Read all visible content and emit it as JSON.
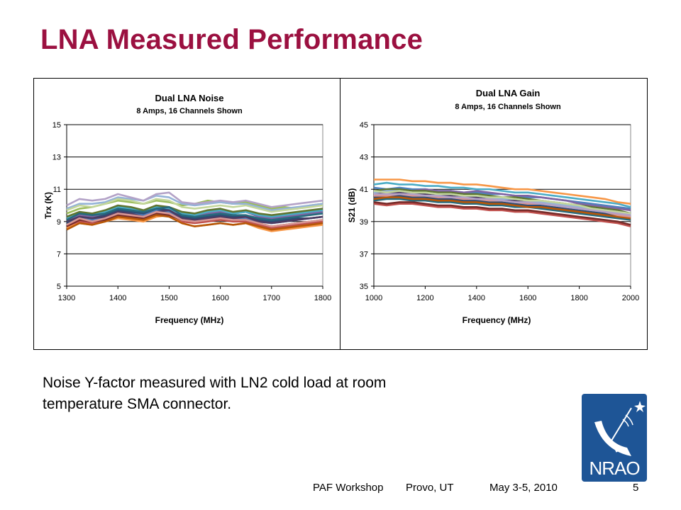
{
  "slide": {
    "title": "LNA Measured Performance",
    "caption_lines": [
      "Noise Y-factor measured with LN2 cold load at room",
      "temperature SMA connector."
    ],
    "footer": {
      "event": "PAF Workshop",
      "location": "Provo, UT",
      "date": "May 3-5, 2010",
      "page": "5"
    },
    "logo_text": "NRAO"
  },
  "colors": {
    "title": "#9b1040",
    "series": [
      "#4f81bd",
      "#c0504d",
      "#9bbb59",
      "#8064a2",
      "#4bacc6",
      "#f79646",
      "#2c4d75",
      "#772c2a",
      "#5f7530",
      "#4d3b62",
      "#276a7c",
      "#b65708",
      "#95b3d7",
      "#d99694",
      "#c3d69b",
      "#b3a2c7"
    ]
  },
  "chart_data": [
    {
      "type": "line",
      "title": "Dual LNA Noise",
      "subtitle": "8 Amps, 16 Channels Shown",
      "xlabel": "Frequency (MHz)",
      "ylabel": "Trx (K)",
      "xlim": [
        1300,
        1800
      ],
      "ylim": [
        5,
        15
      ],
      "xticks": [
        1300,
        1400,
        1500,
        1600,
        1700,
        1800
      ],
      "yticks": [
        5,
        7,
        9,
        11,
        13,
        15
      ],
      "grid": "horizontal",
      "legend": "none",
      "x": [
        1300,
        1325,
        1350,
        1375,
        1400,
        1425,
        1450,
        1475,
        1500,
        1525,
        1550,
        1575,
        1600,
        1625,
        1650,
        1675,
        1700,
        1725,
        1750,
        1775,
        1800
      ],
      "series": [
        {
          "values": [
            8.8,
            9.2,
            9.1,
            9.3,
            9.6,
            9.5,
            9.4,
            9.7,
            9.6,
            9.2,
            9.1,
            9.2,
            9.3,
            9.1,
            9.2,
            9.0,
            8.9,
            9.0,
            9.1,
            9.2,
            9.3
          ]
        },
        {
          "values": [
            8.6,
            9.0,
            8.9,
            9.0,
            9.3,
            9.2,
            9.1,
            9.4,
            9.5,
            9.0,
            8.9,
            9.0,
            9.1,
            9.0,
            9.0,
            8.8,
            8.6,
            8.7,
            8.8,
            8.9,
            9.0
          ]
        },
        {
          "values": [
            9.5,
            9.8,
            9.9,
            10.1,
            10.3,
            10.2,
            10.1,
            10.3,
            10.2,
            10.0,
            10.1,
            10.3,
            10.2,
            10.1,
            10.2,
            10.0,
            9.8,
            9.9,
            9.8,
            10.0,
            10.1
          ]
        },
        {
          "values": [
            9.0,
            9.4,
            9.3,
            9.5,
            9.8,
            9.7,
            9.5,
            9.8,
            9.9,
            9.4,
            9.3,
            9.5,
            9.6,
            9.5,
            9.6,
            9.3,
            9.2,
            9.3,
            9.4,
            9.5,
            9.6
          ]
        },
        {
          "values": [
            9.2,
            9.5,
            9.4,
            9.6,
            9.9,
            9.8,
            9.6,
            9.9,
            9.8,
            9.5,
            9.4,
            9.6,
            9.7,
            9.5,
            9.6,
            9.4,
            9.3,
            9.4,
            9.5,
            9.6,
            9.7
          ]
        },
        {
          "values": [
            8.6,
            8.9,
            8.8,
            9.0,
            9.2,
            9.1,
            9.0,
            9.3,
            9.4,
            8.9,
            8.7,
            8.8,
            8.9,
            8.8,
            8.9,
            8.6,
            8.4,
            8.5,
            8.6,
            8.7,
            8.8
          ]
        },
        {
          "values": [
            8.9,
            9.3,
            9.2,
            9.4,
            9.7,
            9.6,
            9.5,
            9.8,
            9.7,
            9.3,
            9.2,
            9.3,
            9.4,
            9.3,
            9.3,
            9.1,
            9.0,
            9.1,
            9.2,
            9.2,
            9.3
          ]
        },
        {
          "values": [
            8.7,
            9.1,
            9.0,
            9.1,
            9.4,
            9.3,
            9.2,
            9.5,
            9.4,
            9.1,
            9.0,
            9.1,
            9.2,
            9.1,
            9.1,
            8.9,
            8.7,
            8.8,
            8.9,
            9.0,
            9.1
          ]
        },
        {
          "values": [
            9.3,
            9.6,
            9.5,
            9.7,
            10.0,
            9.9,
            9.7,
            10.0,
            9.9,
            9.6,
            9.5,
            9.7,
            9.8,
            9.6,
            9.7,
            9.5,
            9.4,
            9.5,
            9.6,
            9.7,
            9.8
          ]
        },
        {
          "values": [
            9.0,
            9.3,
            9.2,
            9.3,
            9.6,
            9.5,
            9.3,
            9.6,
            9.7,
            9.2,
            9.1,
            9.2,
            9.3,
            9.2,
            9.3,
            9.0,
            8.9,
            9.0,
            9.1,
            9.2,
            9.3
          ]
        },
        {
          "values": [
            9.1,
            9.5,
            9.4,
            9.5,
            9.8,
            9.7,
            9.6,
            9.8,
            9.9,
            9.4,
            9.3,
            9.4,
            9.5,
            9.4,
            9.4,
            9.2,
            9.1,
            9.2,
            9.3,
            9.4,
            9.5
          ]
        },
        {
          "values": [
            8.5,
            8.9,
            8.8,
            9.0,
            9.3,
            9.2,
            9.1,
            9.4,
            9.3,
            8.9,
            8.7,
            8.8,
            8.9,
            8.8,
            8.9,
            8.7,
            8.5,
            8.6,
            8.7,
            8.8,
            8.9
          ]
        },
        {
          "values": [
            9.8,
            10.1,
            10.1,
            10.2,
            10.5,
            10.4,
            10.3,
            10.6,
            10.5,
            10.1,
            10.0,
            10.1,
            10.2,
            10.1,
            10.1,
            9.9,
            9.7,
            9.8,
            9.9,
            10.0,
            10.1
          ]
        },
        {
          "values": [
            8.8,
            9.2,
            9.0,
            9.2,
            9.5,
            9.4,
            9.3,
            9.6,
            9.5,
            9.1,
            9.0,
            9.1,
            9.2,
            9.1,
            9.1,
            8.9,
            8.7,
            8.8,
            8.9,
            9.0,
            9.1
          ]
        },
        {
          "values": [
            9.7,
            10.0,
            9.9,
            10.1,
            10.4,
            10.3,
            10.1,
            10.4,
            10.3,
            9.9,
            9.8,
            9.9,
            10.0,
            9.9,
            10.0,
            9.8,
            9.6,
            9.7,
            9.8,
            9.9,
            10.0
          ]
        },
        {
          "values": [
            10.0,
            10.4,
            10.3,
            10.4,
            10.7,
            10.5,
            10.3,
            10.7,
            10.8,
            10.2,
            10.1,
            10.2,
            10.3,
            10.2,
            10.3,
            10.1,
            9.9,
            10.0,
            10.1,
            10.2,
            10.3
          ]
        }
      ]
    },
    {
      "type": "line",
      "title": "Dual LNA Gain",
      "subtitle": "8 Amps, 16 Channels Shown",
      "xlabel": "Frequency (MHz)",
      "ylabel": "S21 (dB)",
      "xlim": [
        1000,
        2000
      ],
      "ylim": [
        35,
        45
      ],
      "xticks": [
        1000,
        1200,
        1400,
        1600,
        1800,
        2000
      ],
      "yticks": [
        35,
        37,
        39,
        41,
        43,
        45
      ],
      "grid": "horizontal",
      "legend": "none",
      "x": [
        1000,
        1050,
        1100,
        1150,
        1200,
        1250,
        1300,
        1350,
        1400,
        1450,
        1500,
        1550,
        1600,
        1650,
        1700,
        1750,
        1800,
        1850,
        1900,
        1950,
        2000
      ],
      "series": [
        {
          "values": [
            41.1,
            41.0,
            41.1,
            41.0,
            41.0,
            40.9,
            40.9,
            40.8,
            40.8,
            40.7,
            40.7,
            40.6,
            40.5,
            40.5,
            40.4,
            40.3,
            40.2,
            40.1,
            40.0,
            39.9,
            39.8
          ]
        },
        {
          "values": [
            40.1,
            40.0,
            40.1,
            40.1,
            40.0,
            39.9,
            39.9,
            39.8,
            39.8,
            39.7,
            39.7,
            39.6,
            39.6,
            39.5,
            39.4,
            39.3,
            39.2,
            39.1,
            39.0,
            38.9,
            38.7
          ]
        },
        {
          "values": [
            40.8,
            40.7,
            40.8,
            40.8,
            40.7,
            40.6,
            40.6,
            40.5,
            40.5,
            40.4,
            40.3,
            40.3,
            40.2,
            40.1,
            40.0,
            39.9,
            39.8,
            39.6,
            39.5,
            39.4,
            39.3
          ]
        },
        {
          "values": [
            40.6,
            40.8,
            40.9,
            40.9,
            41.0,
            40.9,
            40.9,
            40.8,
            40.9,
            40.8,
            40.7,
            40.6,
            40.6,
            40.5,
            40.4,
            40.3,
            40.1,
            40.0,
            39.9,
            39.8,
            39.7
          ]
        },
        {
          "values": [
            41.3,
            41.4,
            41.3,
            41.3,
            41.2,
            41.2,
            41.1,
            41.1,
            41.0,
            41.0,
            40.9,
            40.8,
            40.8,
            40.7,
            40.6,
            40.5,
            40.4,
            40.3,
            40.2,
            40.1,
            39.9
          ]
        },
        {
          "values": [
            41.6,
            41.6,
            41.6,
            41.5,
            41.5,
            41.4,
            41.4,
            41.3,
            41.3,
            41.2,
            41.1,
            41.0,
            41.0,
            40.9,
            40.8,
            40.7,
            40.6,
            40.5,
            40.4,
            40.2,
            40.1
          ]
        },
        {
          "values": [
            40.5,
            40.5,
            40.6,
            40.5,
            40.5,
            40.4,
            40.4,
            40.3,
            40.3,
            40.2,
            40.2,
            40.1,
            40.0,
            40.0,
            39.9,
            39.8,
            39.7,
            39.6,
            39.5,
            39.4,
            39.3
          ]
        },
        {
          "values": [
            40.2,
            40.1,
            40.2,
            40.2,
            40.1,
            40.0,
            40.0,
            39.9,
            39.9,
            39.8,
            39.8,
            39.7,
            39.7,
            39.6,
            39.5,
            39.4,
            39.3,
            39.2,
            39.1,
            39.0,
            38.8
          ]
        },
        {
          "values": [
            40.9,
            41.0,
            41.0,
            40.9,
            40.9,
            40.8,
            40.8,
            40.7,
            40.7,
            40.6,
            40.5,
            40.5,
            40.4,
            40.3,
            40.2,
            40.1,
            40.0,
            39.9,
            39.8,
            39.7,
            39.5
          ]
        },
        {
          "values": [
            40.7,
            40.8,
            40.8,
            40.8,
            40.7,
            40.7,
            40.6,
            40.6,
            40.5,
            40.5,
            40.4,
            40.3,
            40.3,
            40.2,
            40.1,
            40.0,
            39.9,
            39.8,
            39.7,
            39.6,
            39.5
          ]
        },
        {
          "values": [
            40.3,
            40.4,
            40.4,
            40.3,
            40.3,
            40.2,
            40.2,
            40.1,
            40.1,
            40.0,
            40.0,
            39.9,
            39.9,
            39.8,
            39.7,
            39.6,
            39.5,
            39.4,
            39.3,
            39.2,
            39.1
          ]
        },
        {
          "values": [
            40.4,
            40.5,
            40.5,
            40.4,
            40.4,
            40.3,
            40.3,
            40.2,
            40.2,
            40.1,
            40.1,
            40.0,
            39.9,
            39.9,
            39.8,
            39.7,
            39.6,
            39.5,
            39.4,
            39.3,
            39.2
          ]
        },
        {
          "values": [
            40.8,
            40.9,
            40.9,
            40.8,
            40.8,
            40.7,
            40.7,
            40.6,
            40.6,
            40.5,
            40.4,
            40.4,
            40.3,
            40.2,
            40.1,
            40.0,
            39.9,
            39.8,
            39.7,
            39.6,
            39.4
          ]
        },
        {
          "values": [
            40.6,
            40.6,
            40.7,
            40.6,
            40.6,
            40.5,
            40.5,
            40.4,
            40.4,
            40.3,
            40.3,
            40.2,
            40.1,
            40.1,
            40.0,
            39.9,
            39.8,
            39.7,
            39.6,
            39.4,
            39.3
          ]
        },
        {
          "values": [
            40.9,
            40.8,
            40.9,
            40.8,
            40.8,
            40.7,
            40.7,
            40.6,
            40.6,
            40.5,
            40.5,
            40.4,
            40.3,
            40.3,
            40.2,
            40.1,
            40.0,
            39.8,
            39.7,
            39.6,
            39.5
          ]
        },
        {
          "values": [
            40.7,
            40.7,
            40.7,
            40.7,
            40.6,
            40.6,
            40.5,
            40.5,
            40.4,
            40.4,
            40.3,
            40.2,
            40.2,
            40.1,
            40.0,
            39.9,
            39.8,
            39.7,
            39.6,
            39.5,
            39.4
          ]
        }
      ]
    }
  ]
}
